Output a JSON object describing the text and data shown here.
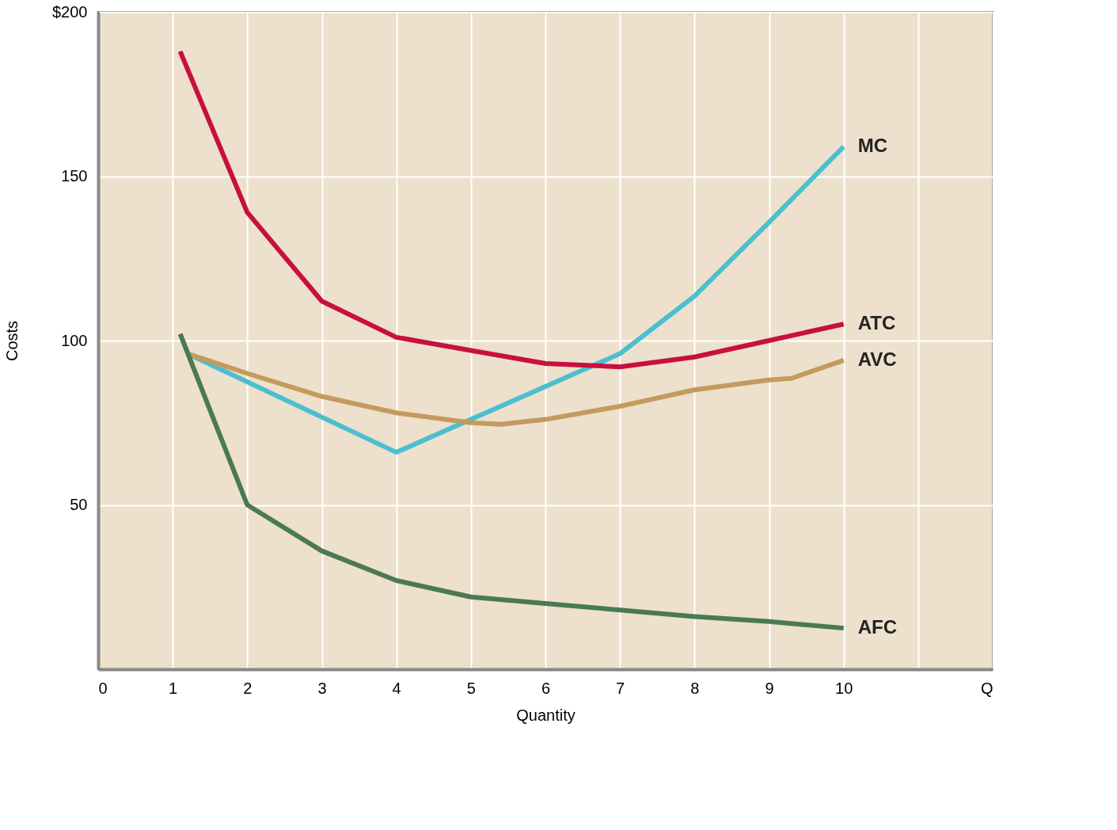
{
  "chart_data": {
    "type": "line",
    "xlabel": "Quantity",
    "ylabel": "Costs",
    "xlim": [
      0,
      12
    ],
    "ylim": [
      0,
      200
    ],
    "xticks": [
      0,
      1,
      2,
      3,
      4,
      5,
      6,
      7,
      8,
      9,
      10,
      {
        "value": 11,
        "label": null
      },
      {
        "value": 12,
        "label": "Q"
      }
    ],
    "yticks": [
      50,
      100,
      150,
      {
        "value": 200,
        "label": "$200"
      }
    ],
    "grid": true,
    "legend": false,
    "line_style": "solid",
    "marker": "none",
    "series": [
      {
        "name": "MC",
        "color": "#4bbfd0",
        "x": [
          1.2,
          4,
          5,
          6,
          7,
          8,
          9,
          10
        ],
        "values": [
          96,
          66,
          76,
          86,
          96,
          113.5,
          136,
          159
        ]
      },
      {
        "name": "ATC",
        "color": "#c8103e",
        "x": [
          1.1,
          2,
          3,
          4,
          5,
          6,
          7,
          8,
          9,
          10
        ],
        "values": [
          188,
          139,
          112,
          101,
          97,
          93,
          92,
          95,
          100,
          105
        ]
      },
      {
        "name": "AVC",
        "color": "#c49a5e",
        "x": [
          1.2,
          2,
          3,
          4,
          5,
          5.4,
          6,
          7,
          8,
          9,
          9.3,
          10
        ],
        "values": [
          96,
          90,
          83,
          78,
          75,
          74.5,
          76,
          80,
          85,
          88,
          88.5,
          94
        ]
      },
      {
        "name": "AFC",
        "color": "#4a7a50",
        "x": [
          1.1,
          2,
          3,
          4,
          5,
          6,
          7,
          8,
          9,
          10
        ],
        "values": [
          102,
          50,
          36,
          27,
          22,
          20,
          18,
          16,
          14.5,
          12.5
        ]
      }
    ]
  }
}
